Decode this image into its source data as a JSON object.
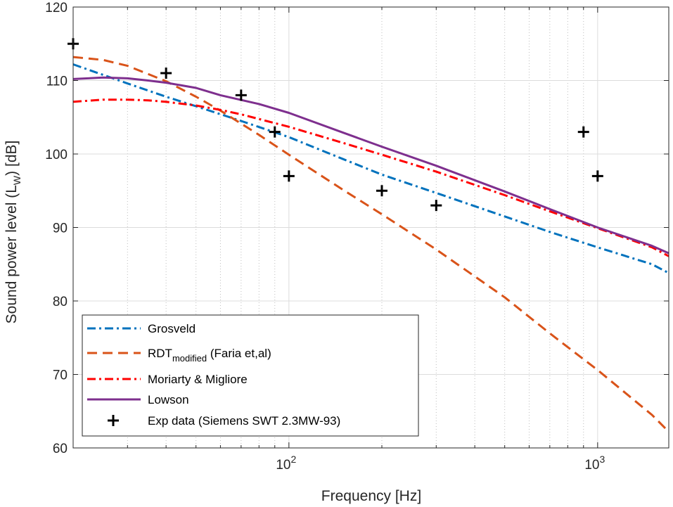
{
  "chart_data": {
    "type": "line",
    "xscale": "log",
    "xlabel": "Frequency [Hz]",
    "ylabel": {
      "main": "Sound power level (L",
      "sub": "W",
      "tail": ") [dB]"
    },
    "xlim": [
      20,
      1700
    ],
    "ylim": [
      60,
      120
    ],
    "yticks": [
      60,
      70,
      80,
      90,
      100,
      110,
      120
    ],
    "xticks": [
      {
        "value": 100,
        "base": "10",
        "exp": "2"
      },
      {
        "value": 1000,
        "base": "10",
        "exp": "3"
      }
    ],
    "grid": true,
    "legend_position": "bottom-left",
    "series": [
      {
        "name": "Grosveld",
        "label": "Grosveld",
        "style": "dashdot",
        "color": "#0072BD",
        "x": [
          20,
          30,
          40,
          50,
          70,
          100,
          150,
          200,
          300,
          500,
          700,
          1000,
          1500,
          1700
        ],
        "y": [
          112.2,
          109.6,
          107.8,
          106.5,
          104.5,
          102.3,
          99.3,
          97.2,
          94.7,
          91.5,
          89.4,
          87.3,
          85.0,
          83.8
        ]
      },
      {
        "name": "RDT modified (Faria et,al)",
        "label": "RDT",
        "sub": "modified",
        "tail": " (Faria et,al)",
        "style": "dashed",
        "color": "#D95319",
        "x": [
          20,
          25,
          30,
          40,
          50,
          60,
          80,
          100,
          150,
          200,
          300,
          500,
          700,
          1000,
          1500,
          1700
        ],
        "y": [
          113.2,
          112.8,
          112.0,
          109.9,
          107.8,
          105.9,
          102.6,
          99.9,
          95.1,
          91.8,
          87.0,
          80.5,
          75.6,
          70.6,
          64.5,
          62.2
        ]
      },
      {
        "name": "Moriarty & Migliore",
        "label": "Moriarty & Migliore",
        "style": "dashdot",
        "color": "#FF0000",
        "x": [
          20,
          25,
          30,
          35,
          40,
          50,
          60,
          70,
          100,
          150,
          200,
          300,
          500,
          700,
          1000,
          1500,
          1700
        ],
        "y": [
          107.1,
          107.4,
          107.4,
          107.3,
          107.1,
          106.6,
          106.0,
          105.4,
          103.7,
          101.5,
          99.9,
          97.6,
          94.4,
          92.2,
          89.9,
          87.3,
          86.1
        ]
      },
      {
        "name": "Lowson",
        "label": "Lowson",
        "style": "solid",
        "color": "#7E2F8E",
        "x": [
          20,
          25,
          30,
          35,
          40,
          50,
          60,
          80,
          100,
          150,
          200,
          300,
          500,
          700,
          1000,
          1500,
          1700
        ],
        "y": [
          110.2,
          110.4,
          110.3,
          110.0,
          109.7,
          109.0,
          108.0,
          106.8,
          105.6,
          102.9,
          101.0,
          98.4,
          94.9,
          92.5,
          90.0,
          87.5,
          86.5
        ]
      },
      {
        "name": "Exp data (Siemens SWT 2.3MW-93)",
        "label": "Exp data (Siemens SWT 2.3MW-93)",
        "style": "plus",
        "color": "#000000",
        "x": [
          20,
          40,
          70,
          90,
          100,
          200,
          300,
          900,
          1000
        ],
        "y": [
          115,
          111,
          108,
          103,
          97,
          95,
          93,
          103,
          97
        ]
      }
    ]
  }
}
